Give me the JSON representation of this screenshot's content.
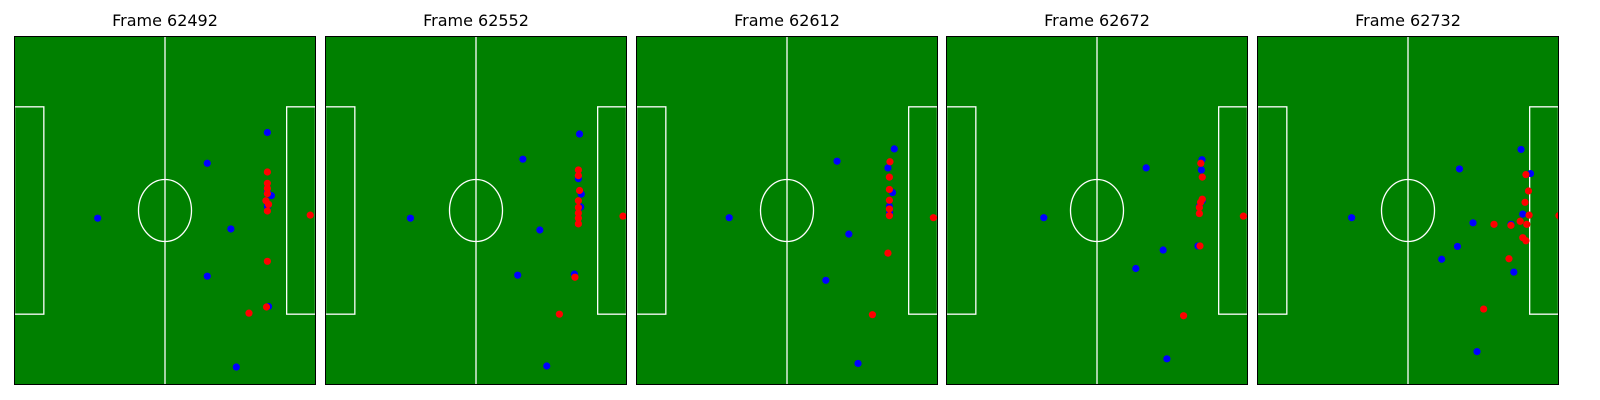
{
  "colors": {
    "pitch": "#008000",
    "lines": "#ffffff",
    "team_a": "#0000ff",
    "team_b": "#ff0000",
    "border": "#000000"
  },
  "chart_data": [
    {
      "type": "scatter",
      "title": "Frame 62492",
      "xlim": [
        0,
        105
      ],
      "ylim": [
        0,
        68
      ],
      "series": [
        {
          "color": "#0000ff",
          "points": [
            [
              29.1,
              32.5
            ],
            [
              67.2,
              43.2
            ],
            [
              75.4,
              30.4
            ],
            [
              67.2,
              21.2
            ],
            [
              77.3,
              3.5
            ],
            [
              88.1,
              49.2
            ],
            [
              88.1,
              37.6
            ],
            [
              89.5,
              36.9
            ],
            [
              88.1,
              34.8
            ],
            [
              88.5,
              15.3
            ]
          ]
        },
        {
          "color": "#ff0000",
          "points": [
            [
              88.1,
              41.5
            ],
            [
              88.1,
              39.3
            ],
            [
              88.1,
              38.3
            ],
            [
              88.1,
              37.3
            ],
            [
              87.6,
              35.9
            ],
            [
              88.5,
              35.2
            ],
            [
              88.1,
              33.9
            ],
            [
              103.0,
              33.1
            ],
            [
              88.1,
              24.1
            ],
            [
              87.8,
              15.2
            ],
            [
              81.7,
              14.0
            ]
          ]
        }
      ]
    },
    {
      "type": "scatter",
      "title": "Frame 62552",
      "xlim": [
        0,
        105
      ],
      "ylim": [
        0,
        68
      ],
      "series": [
        {
          "color": "#0000ff",
          "points": [
            [
              29.7,
              32.5
            ],
            [
              68.8,
              44.0
            ],
            [
              74.7,
              30.2
            ],
            [
              67.0,
              21.4
            ],
            [
              77.1,
              3.7
            ],
            [
              88.5,
              48.9
            ],
            [
              88.1,
              40.2
            ],
            [
              89.1,
              37.2
            ],
            [
              88.9,
              34.7
            ],
            [
              86.7,
              21.6
            ]
          ]
        },
        {
          "color": "#ff0000",
          "points": [
            [
              88.1,
              41.9
            ],
            [
              88.1,
              40.8
            ],
            [
              88.5,
              37.9
            ],
            [
              88.1,
              35.9
            ],
            [
              88.1,
              34.6
            ],
            [
              88.1,
              33.5
            ],
            [
              88.1,
              32.5
            ],
            [
              88.1,
              31.4
            ],
            [
              103.6,
              32.9
            ],
            [
              86.9,
              21.0
            ],
            [
              81.5,
              13.8
            ]
          ]
        }
      ]
    },
    {
      "type": "scatter",
      "title": "Frame 62612",
      "xlim": [
        0,
        105
      ],
      "ylim": [
        0,
        68
      ],
      "series": [
        {
          "color": "#0000ff",
          "points": [
            [
              32.4,
              32.6
            ],
            [
              69.9,
              43.6
            ],
            [
              74.0,
              29.4
            ],
            [
              66.0,
              20.4
            ],
            [
              77.2,
              4.2
            ],
            [
              89.8,
              46.0
            ],
            [
              87.6,
              42.3
            ],
            [
              89.2,
              37.5
            ],
            [
              88.1,
              34.8
            ],
            [
              88.2,
              33.6
            ]
          ]
        },
        {
          "color": "#ff0000",
          "points": [
            [
              88.3,
              43.5
            ],
            [
              88.1,
              40.5
            ],
            [
              88.1,
              38.1
            ],
            [
              88.1,
              36.0
            ],
            [
              88.1,
              34.3
            ],
            [
              88.1,
              33.0
            ],
            [
              103.4,
              32.6
            ],
            [
              87.6,
              25.7
            ],
            [
              82.2,
              13.7
            ]
          ]
        }
      ]
    },
    {
      "type": "scatter",
      "title": "Frame 62672",
      "xlim": [
        0,
        105
      ],
      "ylim": [
        0,
        68
      ],
      "series": [
        {
          "color": "#0000ff",
          "points": [
            [
              34.0,
              32.6
            ],
            [
              69.6,
              42.3
            ],
            [
              75.5,
              26.3
            ],
            [
              66.0,
              22.7
            ],
            [
              76.8,
              5.1
            ],
            [
              89.0,
              43.9
            ],
            [
              88.8,
              41.9
            ],
            [
              89.1,
              35.9
            ],
            [
              88.1,
              34.8
            ],
            [
              87.6,
              27.1
            ]
          ]
        },
        {
          "color": "#ff0000",
          "points": [
            [
              88.6,
              43.2
            ],
            [
              89.1,
              40.5
            ],
            [
              89.1,
              36.2
            ],
            [
              88.5,
              35.6
            ],
            [
              88.1,
              34.6
            ],
            [
              88.1,
              33.4
            ],
            [
              103.4,
              32.9
            ],
            [
              88.3,
              27.1
            ],
            [
              82.6,
              13.5
            ]
          ]
        }
      ]
    },
    {
      "type": "scatter",
      "title": "Frame 62732",
      "xlim": [
        0,
        105
      ],
      "ylim": [
        0,
        68
      ],
      "series": [
        {
          "color": "#0000ff",
          "points": [
            [
              32.9,
              32.6
            ],
            [
              70.4,
              42.1
            ],
            [
              75.1,
              31.6
            ],
            [
              64.2,
              24.5
            ],
            [
              69.7,
              27.0
            ],
            [
              76.5,
              6.5
            ],
            [
              91.8,
              45.9
            ],
            [
              95.1,
              41.2
            ],
            [
              92.4,
              33.3
            ],
            [
              88.3,
              31.3
            ],
            [
              89.3,
              22.0
            ]
          ]
        },
        {
          "color": "#ff0000",
          "points": [
            [
              93.5,
              41.0
            ],
            [
              94.4,
              37.8
            ],
            [
              93.2,
              35.6
            ],
            [
              94.6,
              33.1
            ],
            [
              91.5,
              31.9
            ],
            [
              93.8,
              31.3
            ],
            [
              88.3,
              31.1
            ],
            [
              82.4,
              31.3
            ],
            [
              92.4,
              28.7
            ],
            [
              93.5,
              28.1
            ],
            [
              87.6,
              24.6
            ],
            [
              78.8,
              14.8
            ],
            [
              105.0,
              33.0
            ]
          ]
        }
      ]
    }
  ]
}
